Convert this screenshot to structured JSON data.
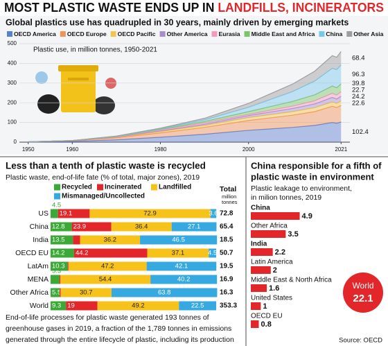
{
  "header": {
    "title": "MOST PLASTIC WASTE ENDS UP IN",
    "highlight": "LANDFILLS, INCINERATORS"
  },
  "chart_data": [
    {
      "type": "area",
      "stacked": true,
      "title": "Global plastics use has quadrupled in 30 years, mainly driven by emerging markets",
      "annotation": "Plastic use, in million tonnes, 1950-2021",
      "x": [
        1950,
        1960,
        1970,
        1980,
        1990,
        2000,
        2010,
        2015,
        2019,
        2020,
        2021
      ],
      "series": [
        {
          "name": "OECD America",
          "color": "#5b7fd1",
          "show_end_label": true,
          "values": [
            1,
            4,
            12,
            25,
            40,
            60,
            75,
            85,
            100,
            96,
            102.4
          ]
        },
        {
          "name": "OECD Europe",
          "color": "#f39256",
          "show_end_label": false,
          "values": [
            1,
            3,
            10,
            22,
            35,
            50,
            62,
            70,
            82,
            80,
            84
          ]
        },
        {
          "name": "OECD Pacific",
          "color": "#f5c54a",
          "show_end_label": true,
          "values": [
            0,
            1,
            3,
            7,
            10,
            15,
            18,
            20,
            22,
            21,
            22.6
          ]
        },
        {
          "name": "Other America",
          "color": "#a98bd0",
          "show_end_label": true,
          "values": [
            0,
            0,
            1,
            3,
            6,
            10,
            16,
            19,
            23,
            22,
            24.2
          ]
        },
        {
          "name": "Eurasia",
          "color": "#f29bbd",
          "show_end_label": true,
          "values": [
            0,
            0,
            2,
            5,
            7,
            6,
            12,
            16,
            21,
            20,
            22.7
          ]
        },
        {
          "name": "Middle East and Africa",
          "color": "#7cc36a",
          "show_end_label": true,
          "values": [
            0,
            0,
            1,
            3,
            7,
            14,
            24,
            30,
            37,
            37,
            39.8
          ]
        },
        {
          "name": "China",
          "color": "#79c8ea",
          "show_end_label": true,
          "values": [
            0,
            0,
            1,
            3,
            8,
            22,
            50,
            70,
            90,
            92,
            96.3
          ]
        },
        {
          "name": "Other Asia",
          "color": "#9e9e9e",
          "show_end_label": true,
          "values": [
            0,
            0,
            1,
            3,
            8,
            20,
            38,
            50,
            64,
            63,
            68.4
          ]
        }
      ],
      "xlim": [
        1948,
        2023
      ],
      "xticks": [
        1950,
        1960,
        1980,
        2000,
        2021
      ],
      "ylim": [
        0,
        500
      ],
      "yticks": [
        0,
        100,
        200,
        300,
        400,
        500
      ],
      "grid": true
    },
    {
      "type": "bar",
      "orientation": "horizontal",
      "stacked": true,
      "title": "Less than a tenth of plastic waste is recycled",
      "subtitle": "Plastic waste, end-of-life fate (% of total, major zones), 2019",
      "categories": [
        "US",
        "China",
        "India",
        "OECD EU",
        "LatAm",
        "MENA",
        "Other Africa",
        "World"
      ],
      "series": [
        {
          "name": "Recycled",
          "color": "#3aa935",
          "values": [
            4.5,
            12.8,
            13.5,
            14.2,
            10.3,
            5.3,
            5.5,
            9.3
          ]
        },
        {
          "name": "Incinerated",
          "color": "#e3262a",
          "values": [
            19.1,
            23.9,
            4.3,
            44.2,
            0.5,
            0.6,
            0.6,
            19
          ]
        },
        {
          "name": "Landfilled",
          "color": "#f7c31b",
          "values": [
            72.9,
            36.4,
            36.2,
            37.1,
            47.2,
            54.4,
            30.7,
            49.2
          ]
        },
        {
          "name": "Mismanaged/Uncollected",
          "color": "#36a9e1",
          "values": [
            3.6,
            27.1,
            46.5,
            4.5,
            42.1,
            40.2,
            63.8,
            22.5
          ]
        }
      ],
      "totals": {
        "title": "Total",
        "subtitle": [
          "million",
          "tonnes"
        ],
        "values": [
          72.8,
          65.4,
          18.5,
          50.7,
          19.5,
          16.9,
          16.3,
          353.3
        ]
      },
      "xlim": [
        0,
        100
      ],
      "note": [
        "End-of-life processes for plastic waste generated 193 tonnes of",
        "greenhouse gases in 2019, a fraction of the 1,789 tonnes in emissions",
        "generated through the entire lifecycle of plastic, including its production"
      ]
    },
    {
      "type": "bar",
      "orientation": "horizontal",
      "title": [
        "China responsible for a fifth of",
        "plastic waste in environment"
      ],
      "subtitle": [
        "Plastic leakage to environment,",
        "in milion tonnes, 2019"
      ],
      "categories": [
        "China",
        "Other Africa",
        "India",
        "Latin America",
        "Middle East & North Africa",
        "United States",
        "OECD EU"
      ],
      "values": [
        4.9,
        3.5,
        2.2,
        2,
        1.6,
        1,
        0.8
      ],
      "color": "#e3262a",
      "xlim": [
        0,
        5
      ],
      "callout": {
        "label": "World",
        "value": 22.1
      },
      "source": "Source: OECD"
    }
  ]
}
